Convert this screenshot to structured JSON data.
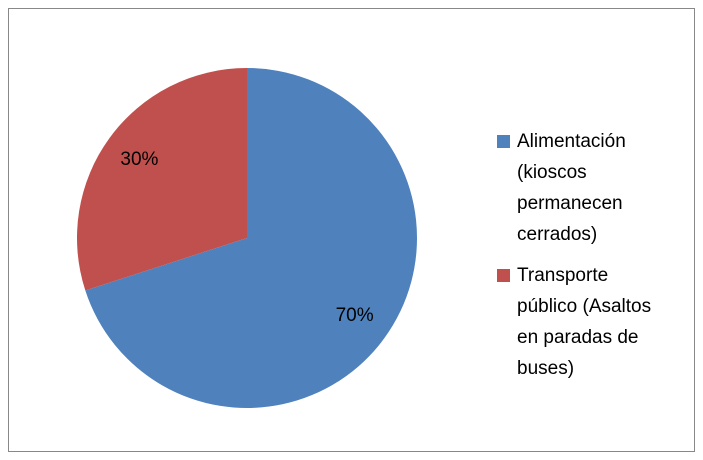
{
  "chart_data": {
    "type": "pie",
    "categories": [
      "Alimentación (kioscos permanecen cerrados)",
      "Transporte público (Asaltos en paradas de buses)"
    ],
    "values": [
      70,
      30
    ],
    "value_labels": [
      "70%",
      "30%"
    ],
    "colors": [
      "#4f81bd",
      "#c0504d"
    ],
    "legend": "right"
  }
}
